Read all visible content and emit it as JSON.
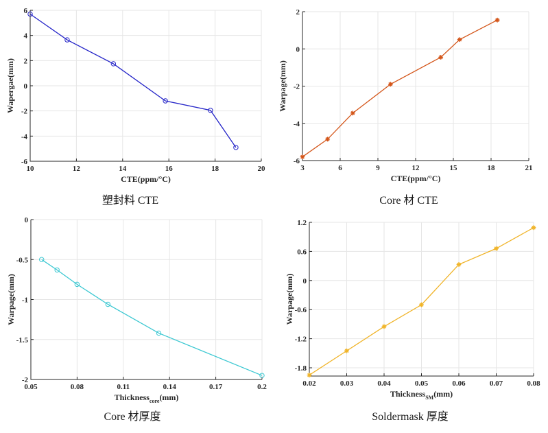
{
  "chart_data": [
    {
      "type": "line",
      "title": "",
      "caption": "塑封料 CTE",
      "xlabel": "CTE(ppm/°C)",
      "ylabel": "Wapergae(mm)",
      "xlim": [
        10,
        20
      ],
      "ylim": [
        -6,
        6
      ],
      "xticks": [
        10,
        12,
        14,
        16,
        18,
        20
      ],
      "yticks": [
        -6,
        -4,
        -2,
        0,
        2,
        4,
        6
      ],
      "grid": true,
      "marker": "circle",
      "color": "#2424c8",
      "series": [
        {
          "name": "Warpage",
          "x": [
            10,
            11.6,
            13.6,
            15.85,
            17.8,
            18.9
          ],
          "y": [
            5.7,
            3.65,
            1.75,
            -1.2,
            -1.95,
            -4.9
          ]
        }
      ]
    },
    {
      "type": "line",
      "title": "",
      "caption": "Core 材 CTE",
      "xlabel": "CTE(ppm/°C)",
      "ylabel": "Warpage(mm)",
      "xlim": [
        3,
        21
      ],
      "ylim": [
        -6,
        2
      ],
      "xticks": [
        3,
        6,
        9,
        12,
        15,
        18,
        21
      ],
      "yticks": [
        -6,
        -4,
        -2,
        0,
        2
      ],
      "grid": true,
      "marker": "asterisk",
      "color": "#d4561a",
      "series": [
        {
          "name": "Warpage",
          "x": [
            3,
            5,
            7,
            10,
            14,
            15.5,
            18.5
          ],
          "y": [
            -5.8,
            -4.85,
            -3.45,
            -1.9,
            -0.45,
            0.5,
            1.55
          ]
        }
      ]
    },
    {
      "type": "line",
      "title": "",
      "caption": "Core 材厚度",
      "xlabel": "Thickness",
      "xlabel_sub": "core",
      "xlabel_suffix": "(mm)",
      "ylabel": "Warpage(mm)",
      "xlim": [
        0.05,
        0.2
      ],
      "ylim": [
        -2,
        0
      ],
      "xticks": [
        0.05,
        0.08,
        0.11,
        0.14,
        0.17,
        0.2
      ],
      "yticks": [
        -2,
        -1.5,
        -1,
        -0.5,
        0
      ],
      "grid": true,
      "marker": "circle",
      "color": "#3cc8d2",
      "series": [
        {
          "name": "Warpage",
          "x": [
            0.057,
            0.067,
            0.08,
            0.1,
            0.133,
            0.2
          ],
          "y": [
            -0.5,
            -0.63,
            -0.81,
            -1.06,
            -1.42,
            -1.95
          ]
        }
      ]
    },
    {
      "type": "line",
      "title": "",
      "caption": "Soldermask 厚度",
      "xlabel": "Thickness",
      "xlabel_sub": "SM",
      "xlabel_suffix": "(mm)",
      "ylabel": "Warpage(mm)",
      "xlim": [
        0.02,
        0.08
      ],
      "ylim": [
        -1.97,
        1.2
      ],
      "xticks": [
        0.02,
        0.03,
        0.04,
        0.05,
        0.06,
        0.07,
        0.08
      ],
      "yticks": [
        -1.8,
        -1.2,
        -0.6,
        0,
        0.6,
        1.2
      ],
      "grid": true,
      "marker": "asterisk",
      "color": "#f0b429",
      "series": [
        {
          "name": "Warpage",
          "x": [
            0.02,
            0.03,
            0.04,
            0.05,
            0.06,
            0.07,
            0.08
          ],
          "y": [
            -1.95,
            -1.45,
            -0.95,
            -0.5,
            0.33,
            0.66,
            1.09
          ]
        }
      ]
    }
  ]
}
